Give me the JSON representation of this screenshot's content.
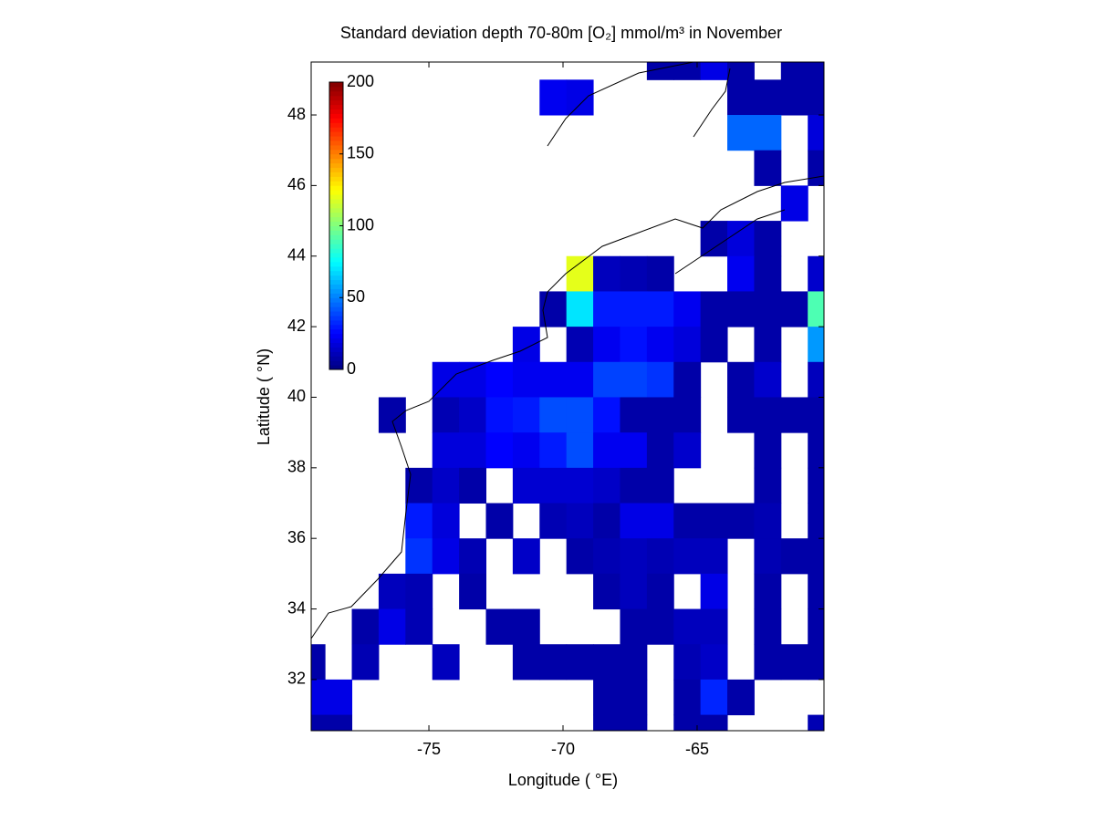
{
  "chart_data": {
    "type": "heatmap",
    "title": "Standard deviation depth 70-80m [O₂] mmol/m³ in November",
    "x_label": "Longitude ( °E)",
    "y_label": "Latitude ( °N)",
    "x": [
      -79.375,
      -78.375,
      -77.375,
      -76.375,
      -75.375,
      -74.375,
      -73.375,
      -72.375,
      -71.375,
      -70.375,
      -69.375,
      -68.375,
      -67.375,
      -66.375,
      -65.375,
      -64.375,
      -63.375,
      -62.375,
      -61.375,
      -60.375
    ],
    "y": [
      49.5,
      48.5,
      47.5,
      46.5,
      45.5,
      44.5,
      43.5,
      42.5,
      41.5,
      40.5,
      39.5,
      38.5,
      37.5,
      36.5,
      35.5,
      34.5,
      33.5,
      32.5,
      31.5,
      30.5
    ],
    "values": [
      [
        null,
        null,
        null,
        null,
        null,
        null,
        null,
        null,
        null,
        null,
        null,
        null,
        null,
        8,
        8,
        20,
        8,
        null,
        8,
        8
      ],
      [
        null,
        null,
        null,
        null,
        null,
        null,
        null,
        null,
        null,
        22,
        20,
        null,
        null,
        null,
        null,
        null,
        8,
        8,
        8,
        8
      ],
      [
        null,
        null,
        null,
        null,
        null,
        null,
        null,
        null,
        null,
        null,
        null,
        null,
        null,
        null,
        null,
        null,
        45,
        45,
        null,
        18
      ],
      [
        null,
        null,
        null,
        null,
        null,
        null,
        null,
        null,
        null,
        null,
        null,
        null,
        null,
        null,
        null,
        null,
        null,
        8,
        null,
        8
      ],
      [
        null,
        null,
        null,
        null,
        null,
        null,
        null,
        null,
        null,
        null,
        null,
        null,
        null,
        null,
        null,
        null,
        null,
        null,
        20,
        null
      ],
      [
        null,
        null,
        null,
        null,
        null,
        null,
        null,
        null,
        null,
        null,
        null,
        null,
        null,
        null,
        null,
        8,
        18,
        8,
        null,
        null
      ],
      [
        null,
        null,
        null,
        null,
        null,
        null,
        null,
        null,
        null,
        null,
        120,
        12,
        10,
        8,
        null,
        null,
        22,
        8,
        null,
        15
      ],
      [
        null,
        null,
        null,
        null,
        null,
        null,
        null,
        null,
        null,
        8,
        70,
        30,
        30,
        30,
        22,
        8,
        8,
        8,
        8,
        90
      ],
      [
        null,
        null,
        null,
        null,
        null,
        null,
        null,
        null,
        20,
        null,
        10,
        22,
        28,
        22,
        18,
        8,
        null,
        8,
        null,
        55
      ],
      [
        null,
        null,
        null,
        null,
        null,
        20,
        20,
        25,
        22,
        22,
        22,
        38,
        38,
        35,
        8,
        null,
        8,
        15,
        null,
        12
      ],
      [
        null,
        null,
        null,
        8,
        null,
        10,
        14,
        28,
        30,
        40,
        40,
        28,
        8,
        8,
        8,
        null,
        8,
        8,
        8,
        8
      ],
      [
        null,
        null,
        null,
        null,
        null,
        18,
        18,
        25,
        22,
        30,
        40,
        22,
        22,
        8,
        15,
        null,
        null,
        8,
        null,
        8
      ],
      [
        null,
        null,
        null,
        null,
        8,
        14,
        8,
        null,
        16,
        16,
        16,
        14,
        8,
        8,
        null,
        null,
        null,
        8,
        null,
        8
      ],
      [
        null,
        null,
        null,
        null,
        30,
        18,
        null,
        8,
        null,
        10,
        12,
        8,
        20,
        20,
        8,
        8,
        8,
        10,
        null,
        8
      ],
      [
        null,
        null,
        null,
        null,
        35,
        20,
        10,
        null,
        14,
        null,
        8,
        10,
        12,
        10,
        12,
        12,
        null,
        10,
        8,
        8
      ],
      [
        null,
        null,
        null,
        12,
        10,
        null,
        8,
        null,
        null,
        null,
        null,
        8,
        12,
        8,
        null,
        20,
        null,
        8,
        null,
        8
      ],
      [
        null,
        null,
        8,
        20,
        10,
        null,
        null,
        8,
        8,
        null,
        null,
        null,
        8,
        8,
        12,
        12,
        null,
        8,
        null,
        8
      ],
      [
        8,
        null,
        10,
        null,
        null,
        12,
        null,
        null,
        8,
        8,
        8,
        8,
        8,
        null,
        10,
        14,
        null,
        8,
        8,
        8
      ],
      [
        20,
        20,
        null,
        null,
        null,
        null,
        null,
        null,
        null,
        null,
        null,
        8,
        8,
        null,
        8,
        32,
        8,
        null,
        null,
        null
      ],
      [
        8,
        8,
        null,
        null,
        null,
        null,
        null,
        null,
        null,
        null,
        null,
        8,
        8,
        null,
        8,
        8,
        null,
        null,
        null,
        10
      ]
    ],
    "xlim": [
      -79.39,
      -60.27
    ],
    "ylim": [
      30.55,
      49.5
    ],
    "xticks": [
      -75,
      -70,
      -65
    ],
    "yticks": [
      32,
      34,
      36,
      38,
      40,
      42,
      44,
      46,
      48
    ],
    "colormap": "jet",
    "clim": [
      0,
      200
    ],
    "cticks": [
      0,
      50,
      100,
      150,
      200
    ]
  }
}
